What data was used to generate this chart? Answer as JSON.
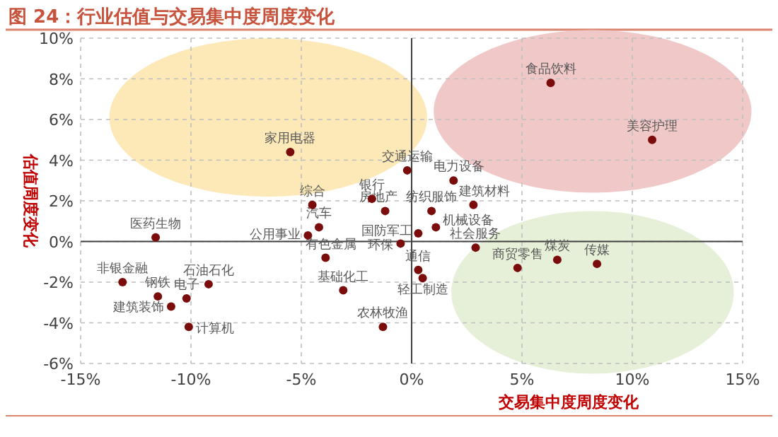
{
  "chart_data": {
    "type": "scatter",
    "title": "图 24：行业估值与交易集中度周度变化",
    "xlabel": "交易集中度周度变化",
    "ylabel": "估值周度变化",
    "x": [
      -5.5,
      6.3,
      10.9,
      -0.2,
      1.9,
      -1.8,
      -1.2,
      0.9,
      2.8,
      1.1,
      0.3,
      -0.5,
      2.9,
      0.3,
      0.5,
      -4.5,
      -4.2,
      -4.7,
      -3.9,
      -3.1,
      -1.3,
      4.8,
      6.6,
      8.4,
      -11.6,
      -13.1,
      -11.5,
      -10.2,
      -10.9,
      -9.2,
      -10.1
    ],
    "series": [
      {
        "color": "#7b0c0c",
        "values": [
          4.4,
          7.8,
          5.0,
          3.5,
          3.0,
          2.1,
          1.5,
          1.5,
          1.8,
          0.7,
          0.4,
          -0.1,
          -0.3,
          -1.4,
          -1.8,
          1.8,
          0.7,
          0.3,
          -0.8,
          -2.4,
          -4.2,
          -1.3,
          -0.9,
          -1.1,
          0.2,
          -2.0,
          -2.7,
          -2.8,
          -3.2,
          -2.1,
          -4.2
        ]
      }
    ],
    "annotations": [
      {
        "text": "家用电器",
        "x": -5.5,
        "y": 4.4
      },
      {
        "text": "食品饮料",
        "x": 6.3,
        "y": 7.8
      },
      {
        "text": "美容护理",
        "x": 10.9,
        "y": 5.0
      },
      {
        "text": "交通运输",
        "x": -0.2,
        "y": 3.5
      },
      {
        "text": "电力设备",
        "x": 1.9,
        "y": 3.0
      },
      {
        "text": "银行",
        "x": -1.8,
        "y": 2.1
      },
      {
        "text": "房地产",
        "x": -1.2,
        "y": 1.5
      },
      {
        "text": "纺织服饰",
        "x": 0.9,
        "y": 1.5
      },
      {
        "text": "建筑材料",
        "x": 2.8,
        "y": 1.8
      },
      {
        "text": "机械设备",
        "x": 1.1,
        "y": 0.7
      },
      {
        "text": "国防军工",
        "x": 0.3,
        "y": 0.4
      },
      {
        "text": "环保",
        "x": -0.5,
        "y": -0.1
      },
      {
        "text": "社会服务",
        "x": 2.9,
        "y": -0.3
      },
      {
        "text": "通信",
        "x": 0.3,
        "y": -1.4
      },
      {
        "text": "轻工制造",
        "x": 0.5,
        "y": -1.8
      },
      {
        "text": "综合",
        "x": -4.5,
        "y": 1.8
      },
      {
        "text": "汽车",
        "x": -4.2,
        "y": 0.7
      },
      {
        "text": "公用事业",
        "x": -4.7,
        "y": 0.3
      },
      {
        "text": "有色金属",
        "x": -3.9,
        "y": -0.8
      },
      {
        "text": "基础化工",
        "x": -3.1,
        "y": -2.4
      },
      {
        "text": "农林牧渔",
        "x": -1.3,
        "y": -4.2
      },
      {
        "text": "商贸零售",
        "x": 4.8,
        "y": -1.3
      },
      {
        "text": "煤炭",
        "x": 6.6,
        "y": -0.9
      },
      {
        "text": "传媒",
        "x": 8.4,
        "y": -1.1
      },
      {
        "text": "医药生物",
        "x": -11.6,
        "y": 0.2
      },
      {
        "text": "非银金融",
        "x": -13.1,
        "y": -2.0
      },
      {
        "text": "钢铁",
        "x": -11.5,
        "y": -2.7
      },
      {
        "text": "电子",
        "x": -10.2,
        "y": -2.8
      },
      {
        "text": "建筑装饰",
        "x": -10.9,
        "y": -3.2
      },
      {
        "text": "石油石化",
        "x": -9.2,
        "y": -2.1
      },
      {
        "text": "计算机",
        "x": -10.1,
        "y": -4.2
      }
    ],
    "xlim": [
      -15,
      15
    ],
    "ylim": [
      -6,
      10
    ],
    "xticks": [
      {
        "value": -15,
        "label": "-15%"
      },
      {
        "value": -10,
        "label": "-10%"
      },
      {
        "value": -5,
        "label": "-5%"
      },
      {
        "value": 0,
        "label": "0%"
      },
      {
        "value": 5,
        "label": "5%"
      },
      {
        "value": 10,
        "label": "10%"
      },
      {
        "value": 15,
        "label": "15%"
      }
    ],
    "yticks": [
      {
        "value": -6,
        "label": "-6%"
      },
      {
        "value": -4,
        "label": "-4%"
      },
      {
        "value": -2,
        "label": "-2%"
      },
      {
        "value": 0,
        "label": "0%"
      },
      {
        "value": 2,
        "label": "2%"
      },
      {
        "value": 4,
        "label": "4%"
      },
      {
        "value": 6,
        "label": "6%"
      },
      {
        "value": 8,
        "label": "8%"
      },
      {
        "value": 10,
        "label": "10%"
      }
    ],
    "grid": true,
    "marker": "circle"
  }
}
